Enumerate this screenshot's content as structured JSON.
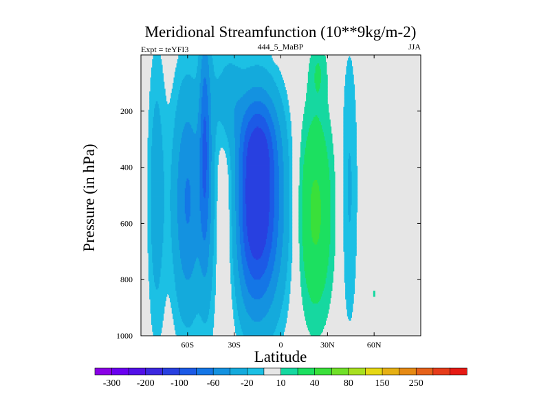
{
  "chart_data": {
    "type": "contour",
    "title": "Meridional Streamfunction (10**9kg/m-2)",
    "subtitle_left": "Expt = teYFI3",
    "subtitle_center": "444_5_MaBP",
    "subtitle_right": "JJA",
    "xlabel": "Latitude",
    "ylabel": "Pressure (in hPa)",
    "xlim": [
      -90,
      90
    ],
    "ylim": [
      1000,
      0
    ],
    "x_ticks": [
      {
        "value": -60,
        "label": "60S"
      },
      {
        "value": -30,
        "label": "30S"
      },
      {
        "value": 0,
        "label": "0"
      },
      {
        "value": 30,
        "label": "30N"
      },
      {
        "value": 60,
        "label": "60N"
      }
    ],
    "y_ticks": [
      {
        "value": 200,
        "label": "200"
      },
      {
        "value": 400,
        "label": "400"
      },
      {
        "value": 600,
        "label": "600"
      },
      {
        "value": 800,
        "label": "800"
      },
      {
        "value": 1000,
        "label": "1000"
      }
    ],
    "colorbar": {
      "colors": [
        "#8a00e6",
        "#6a00f0",
        "#5210e8",
        "#3c28e0",
        "#2840e0",
        "#1c5ae6",
        "#1476e6",
        "#1492e0",
        "#14aadc",
        "#1cc0e4",
        "#e6e6e6",
        "#16d8a0",
        "#1ce060",
        "#3ae03a",
        "#70e028",
        "#a8e020",
        "#e6d814",
        "#e6b014",
        "#e68a14",
        "#e6621a",
        "#e63c1a",
        "#e61a14"
      ],
      "labels": [
        {
          "boundary": 1,
          "text": "-300"
        },
        {
          "boundary": 3,
          "text": "-200"
        },
        {
          "boundary": 5,
          "text": "-100"
        },
        {
          "boundary": 7,
          "text": "-60"
        },
        {
          "boundary": 9,
          "text": "-20"
        },
        {
          "boundary": 11,
          "text": "10"
        },
        {
          "boundary": 13,
          "text": "40"
        },
        {
          "boundary": 15,
          "text": "80"
        },
        {
          "boundary": 17,
          "text": "150"
        },
        {
          "boundary": 19,
          "text": "250"
        }
      ]
    },
    "cells": [
      {
        "lat": -16,
        "p": 560,
        "sx": 12,
        "sy": 260,
        "v": -125
      },
      {
        "lat": -14,
        "p": 300,
        "sx": 9,
        "sy": 120,
        "v": -40
      },
      {
        "lat": -60,
        "p": 520,
        "sx": 7,
        "sy": 300,
        "v": -62
      },
      {
        "lat": -80,
        "p": 500,
        "sx": 4,
        "sy": 360,
        "v": -30
      },
      {
        "lat": -46,
        "p": 480,
        "sx": 4,
        "sy": 380,
        "v": -25
      },
      {
        "lat": -49,
        "p": 300,
        "sx": 2.5,
        "sy": 300,
        "v": -55
      },
      {
        "lat": -33,
        "p": 560,
        "sx": 7,
        "sy": 260,
        "v": 35
      },
      {
        "lat": -34,
        "p": 150,
        "sx": 6,
        "sy": 120,
        "v": -30
      },
      {
        "lat": 22,
        "p": 560,
        "sx": 8,
        "sy": 260,
        "v": 45
      },
      {
        "lat": 24,
        "p": 50,
        "sx": 4,
        "sy": 80,
        "v": 15
      },
      {
        "lat": 44,
        "p": 480,
        "sx": 4,
        "sy": 380,
        "v": -22
      },
      {
        "lat": 60,
        "p": 850,
        "sx": 0.6,
        "sy": 25,
        "v": 12
      },
      {
        "lat": -3,
        "p": 0,
        "sx": 1.2,
        "sy": 15,
        "v": 12
      }
    ]
  }
}
